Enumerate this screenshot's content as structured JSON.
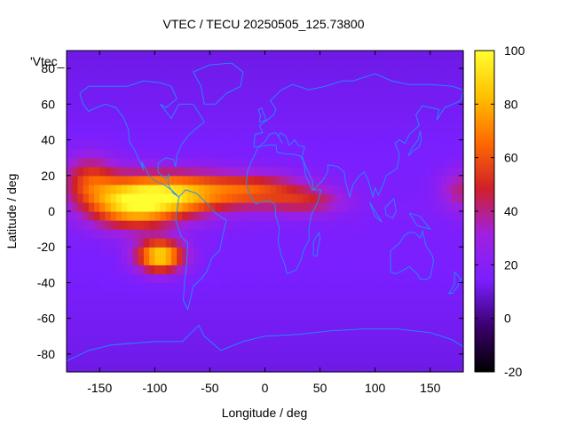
{
  "chart_data": {
    "type": "heatmap",
    "title": "VTEC / TECU 20250505_125.73800",
    "xlabel": "Longitude / deg",
    "ylabel": "Latitude / deg",
    "series_label": "'Vtec_",
    "xlim": [
      -180,
      180
    ],
    "ylim": [
      -90,
      90
    ],
    "xticks": [
      -150,
      -100,
      -50,
      0,
      50,
      100,
      150
    ],
    "yticks": [
      -80,
      -60,
      -40,
      -20,
      0,
      20,
      40,
      60,
      80
    ],
    "colorbar": {
      "range": [
        -20,
        100
      ],
      "ticks": [
        -20,
        0,
        20,
        40,
        60,
        80,
        100
      ],
      "palette": [
        "#000000",
        "#3b006e",
        "#7a1fff",
        "#a020e0",
        "#d0202a",
        "#ff6a00",
        "#ffc000",
        "#ffff30"
      ]
    },
    "grid_resolution_deg": [
      5,
      5
    ],
    "features": [
      {
        "lon": -95,
        "lat": -25,
        "amp": 75,
        "slon": 22,
        "slat": 9
      },
      {
        "lon": -120,
        "lat": 5,
        "amp": 72,
        "slon": 40,
        "slat": 14
      },
      {
        "lon": -75,
        "lat": 10,
        "amp": 55,
        "slon": 45,
        "slat": 12
      },
      {
        "lon": -10,
        "lat": 12,
        "amp": 40,
        "slon": 45,
        "slat": 10
      },
      {
        "lon": 40,
        "lat": 6,
        "amp": 26,
        "slon": 35,
        "slat": 8
      },
      {
        "lon": -160,
        "lat": 18,
        "amp": 35,
        "slon": 25,
        "slat": 14
      },
      {
        "lon": 178,
        "lat": 12,
        "amp": 25,
        "slon": 20,
        "slat": 12
      }
    ],
    "background_vtec": 16,
    "coastline_color": "#1e90ff"
  }
}
